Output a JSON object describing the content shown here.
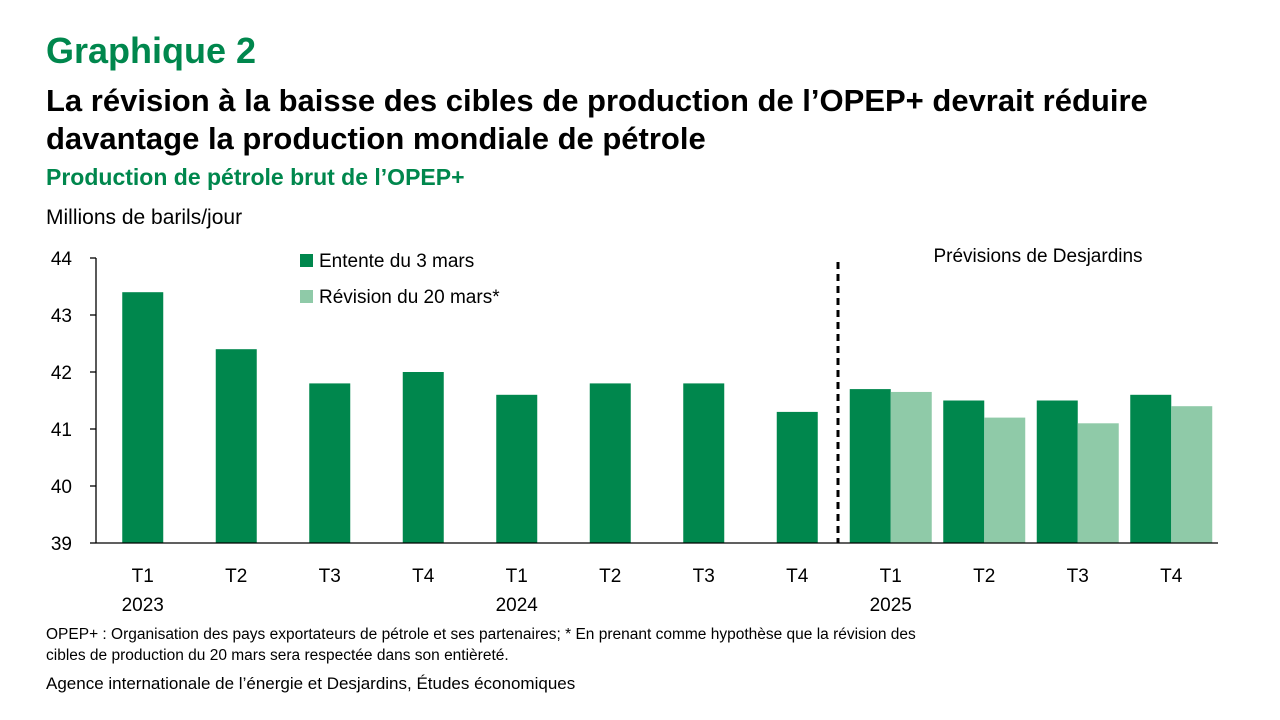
{
  "figure_label": "Graphique 2",
  "headline": "La révision à la baisse des cibles de production de l’OPEP+ devrait réduire davantage la production mondiale de pétrole",
  "subtitle": "Production de pétrole brut de l’OPEP+",
  "unit": "Millions de barils/jour",
  "note": "OPEP+ : Organisation des pays exportateurs de pétrole et ses partenaires; * En prenant comme hypothèse que la révision des cibles de production du 20 mars sera respectée dans son entièreté.",
  "source": "Agence internationale de l’énergie et Desjardins, Études économiques",
  "colors": {
    "title_green": "#00874d",
    "series_dark": "#00874d",
    "series_light": "#8fcaa8"
  },
  "chart_data": {
    "type": "bar",
    "categories": [
      "T1",
      "T2",
      "T3",
      "T4",
      "T1",
      "T2",
      "T3",
      "T4",
      "T1",
      "T2",
      "T3",
      "T4"
    ],
    "year_labels": [
      {
        "label": "2023",
        "category_index": 0
      },
      {
        "label": "2024",
        "category_index": 4
      },
      {
        "label": "2025",
        "category_index": 8
      }
    ],
    "series": [
      {
        "name": "Entente du 3 mars",
        "color": "#00874d",
        "values": [
          43.4,
          42.4,
          41.8,
          42.0,
          41.6,
          41.8,
          41.8,
          41.3,
          41.7,
          41.5,
          41.5,
          41.6
        ]
      },
      {
        "name": "Révision du 20 mars*",
        "color": "#8fcaa8",
        "values": [
          null,
          null,
          null,
          null,
          null,
          null,
          null,
          null,
          41.65,
          41.2,
          41.1,
          41.4
        ]
      }
    ],
    "ylim": [
      39,
      44
    ],
    "yticks": [
      39,
      40,
      41,
      42,
      43,
      44
    ],
    "forecast_start_index": 8,
    "forecast_label": "Prévisions de Desjardins",
    "legend_position": "top-left",
    "grid": false
  }
}
